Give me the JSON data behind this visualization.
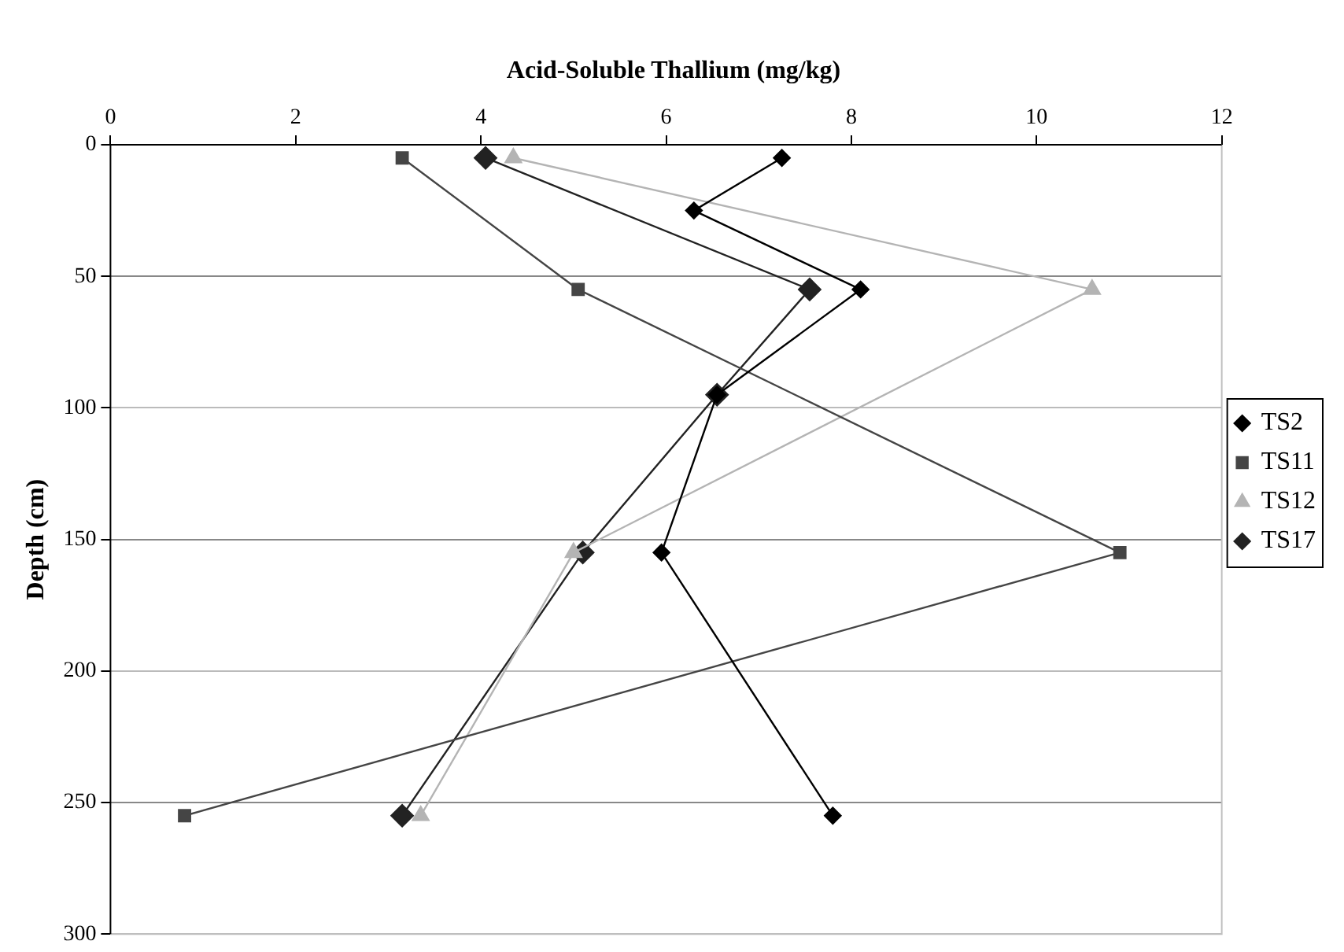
{
  "chart_data": {
    "type": "line",
    "title": "Acid-Soluble Thallium (mg/kg)",
    "ylabel": "Depth (cm)",
    "xlim": [
      0,
      12
    ],
    "xticks": [
      0,
      2,
      4,
      6,
      8,
      10,
      12
    ],
    "ylim": [
      300,
      0
    ],
    "yticks": [
      0,
      50,
      100,
      150,
      200,
      250,
      300
    ],
    "grid": "y",
    "legend": "right",
    "line_style": "solid",
    "series": [
      {
        "name": "TS2",
        "color": "#000000",
        "marker": "diamond",
        "x": [
          7.25,
          6.3,
          8.1,
          6.55,
          5.95,
          7.8
        ],
        "values": [
          5,
          25,
          55,
          95,
          155,
          255
        ]
      },
      {
        "name": "TS11",
        "color": "#454545",
        "marker": "square",
        "x": [
          3.15,
          5.05,
          10.9,
          0.8
        ],
        "values": [
          5,
          55,
          155,
          255
        ]
      },
      {
        "name": "TS12",
        "color": "#b4b4b4",
        "marker": "triangle",
        "x": [
          4.35,
          10.6,
          5.0,
          3.35
        ],
        "values": [
          5,
          55,
          155,
          255
        ]
      },
      {
        "name": "TS17",
        "color": "#222222",
        "marker": "diamond",
        "x": [
          4.05,
          7.55,
          6.55,
          5.1,
          3.15
        ],
        "values": [
          5,
          55,
          95,
          155,
          255
        ]
      }
    ]
  }
}
